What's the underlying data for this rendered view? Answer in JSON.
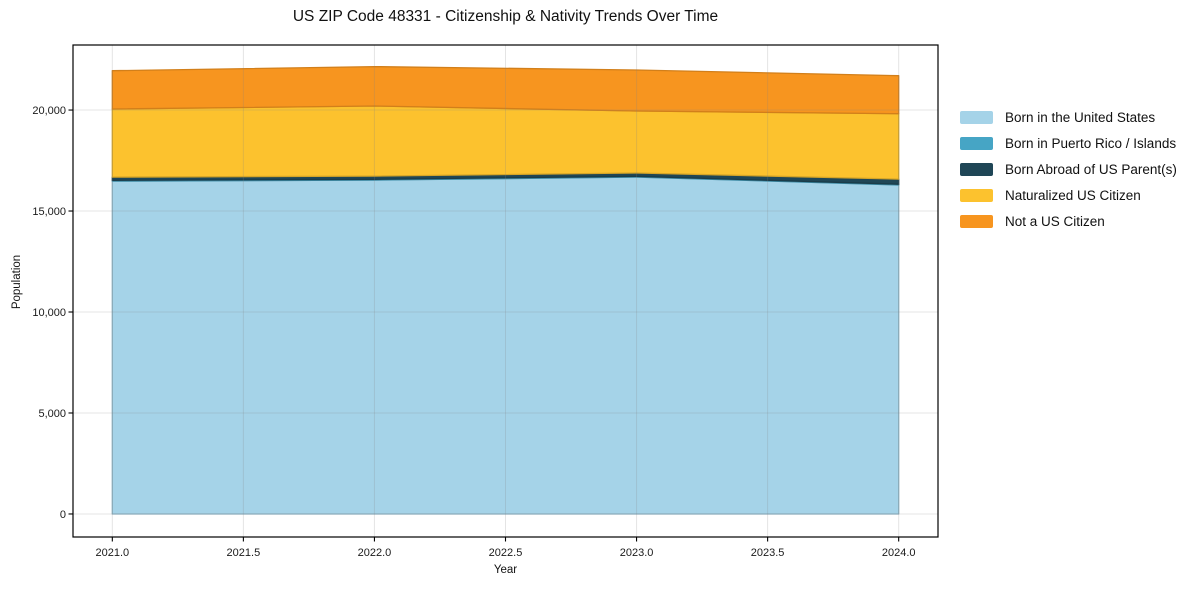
{
  "page": {
    "background": "#ffffff",
    "spine_color": "#000000",
    "text_color": "#111111"
  },
  "chart_data": {
    "type": "area",
    "stacked": true,
    "title": "US ZIP Code 48331 - Citizenship & Nativity Trends Over Time",
    "xlabel": "Year",
    "ylabel": "Population",
    "x": [
      2021,
      2022,
      2023,
      2024
    ],
    "series": [
      {
        "name": "Born in the United States",
        "color": "#A5D3E8",
        "values": [
          16480,
          16530,
          16680,
          16290
        ]
      },
      {
        "name": "Born in Puerto Rico / Islands",
        "color": "#46A5C5",
        "values": [
          40,
          40,
          40,
          40
        ]
      },
      {
        "name": "Born Abroad of US Parent(s)",
        "color": "#1F4656",
        "values": [
          160,
          160,
          160,
          250
        ]
      },
      {
        "name": "Naturalized US Citizen",
        "color": "#FCC22E",
        "values": [
          3370,
          3470,
          3070,
          3240
        ]
      },
      {
        "name": "Not a US Citizen",
        "color": "#F7951F",
        "values": [
          1900,
          1950,
          2030,
          1880
        ]
      }
    ],
    "stacked_totals": [
      21950,
      22150,
      21980,
      21700
    ],
    "xlim": [
      2020.85,
      2024.15
    ],
    "ylim": [
      -1140,
      23220
    ],
    "x_ticks": {
      "values": [
        2021.0,
        2021.5,
        2022.0,
        2022.5,
        2023.0,
        2023.5,
        2024.0
      ],
      "labels": [
        "2021.0",
        "2021.5",
        "2022.0",
        "2022.5",
        "2023.0",
        "2023.5",
        "2024.0"
      ]
    },
    "y_ticks": {
      "values": [
        0,
        5000,
        10000,
        15000,
        20000
      ],
      "labels": [
        "0",
        "5,000",
        "10,000",
        "15,000",
        "20,000"
      ]
    },
    "grid": true,
    "legend_position": "right-outside"
  }
}
